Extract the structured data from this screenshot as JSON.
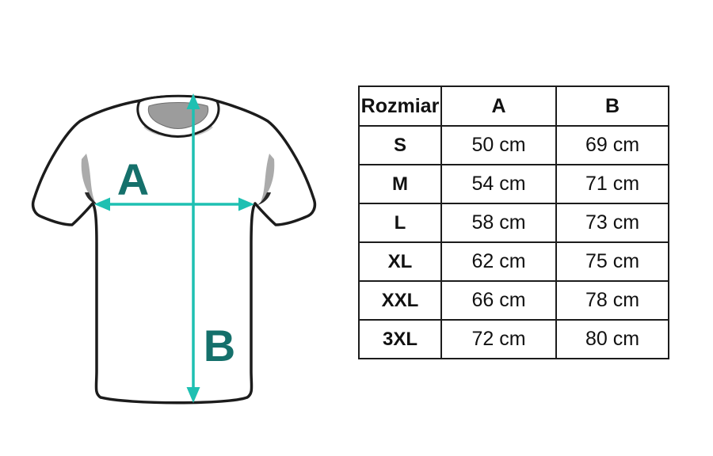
{
  "diagram": {
    "label_a": "A",
    "label_b": "B",
    "arrow_color": "#1ec0b2",
    "label_color": "#15706b",
    "collar_color": "#9c9c9c",
    "outline_color": "#1c1c1c"
  },
  "table": {
    "headers": [
      "Rozmiar",
      "A",
      "B"
    ],
    "rows": [
      {
        "size": "S",
        "a": "50 cm",
        "b": "69 cm"
      },
      {
        "size": "M",
        "a": "54 cm",
        "b": "71 cm"
      },
      {
        "size": "L",
        "a": "58 cm",
        "b": "73 cm"
      },
      {
        "size": "XL",
        "a": "62 cm",
        "b": "75 cm"
      },
      {
        "size": "XXL",
        "a": "66 cm",
        "b": "78 cm"
      },
      {
        "size": "3XL",
        "a": "72 cm",
        "b": "80 cm"
      }
    ]
  }
}
